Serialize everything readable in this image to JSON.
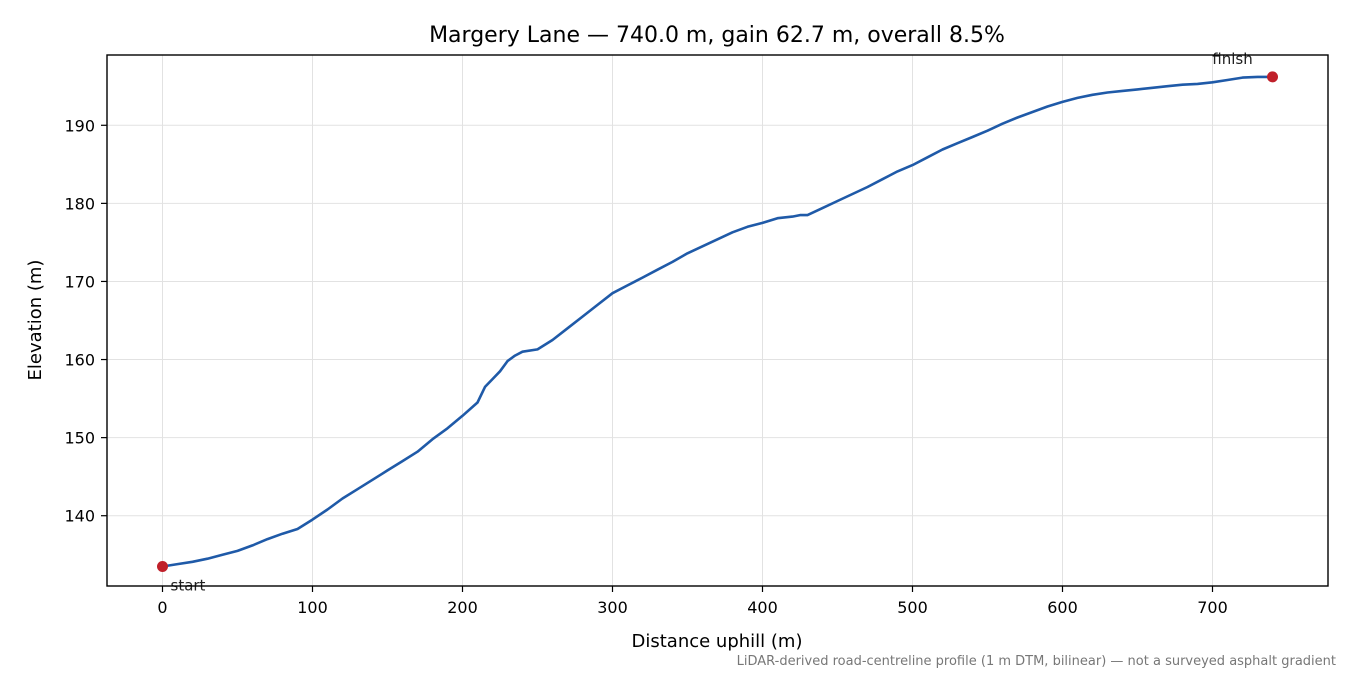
{
  "chart_data": {
    "type": "line",
    "title": "Margery Lane — 740.0 m, gain 62.7 m, overall 8.5%",
    "xlabel": "Distance uphill (m)",
    "ylabel": "Elevation (m)",
    "xlim": [
      -37,
      777
    ],
    "ylim": [
      131,
      199
    ],
    "xticks": [
      0,
      100,
      200,
      300,
      400,
      500,
      600,
      700
    ],
    "yticks": [
      140,
      150,
      160,
      170,
      180,
      190
    ],
    "grid": true,
    "colors": {
      "line": "#1f5aa8",
      "marker": "#c0202a",
      "grid": "#e2e2e2"
    },
    "series": [
      {
        "x": [
          0,
          10,
          20,
          30,
          40,
          50,
          60,
          70,
          80,
          90,
          100,
          110,
          120,
          130,
          140,
          150,
          160,
          170,
          180,
          190,
          200,
          210,
          215,
          220,
          225,
          230,
          235,
          240,
          250,
          260,
          270,
          280,
          290,
          300,
          310,
          320,
          330,
          340,
          350,
          360,
          370,
          380,
          390,
          400,
          410,
          420,
          425,
          430,
          440,
          450,
          460,
          470,
          480,
          490,
          500,
          510,
          520,
          530,
          540,
          550,
          560,
          570,
          580,
          590,
          600,
          610,
          620,
          630,
          640,
          650,
          660,
          670,
          680,
          690,
          700,
          710,
          720,
          730,
          740
        ],
        "y": [
          133.5,
          133.8,
          134.1,
          134.5,
          135.0,
          135.5,
          136.2,
          137.0,
          137.7,
          138.3,
          139.5,
          140.8,
          142.2,
          143.4,
          144.6,
          145.8,
          147.0,
          148.2,
          149.8,
          151.2,
          152.8,
          154.5,
          156.5,
          157.5,
          158.5,
          159.8,
          160.5,
          161.0,
          161.3,
          162.5,
          164.0,
          165.5,
          167.0,
          168.5,
          169.5,
          170.5,
          171.5,
          172.5,
          173.6,
          174.5,
          175.4,
          176.3,
          177.0,
          177.5,
          178.1,
          178.3,
          178.5,
          178.5,
          179.4,
          180.3,
          181.2,
          182.1,
          183.1,
          184.1,
          184.9,
          185.9,
          186.9,
          187.7,
          188.5,
          189.3,
          190.2,
          191.0,
          191.7,
          192.4,
          193.0,
          193.5,
          193.9,
          194.2,
          194.4,
          194.6,
          194.8,
          195.0,
          195.2,
          195.3,
          195.5,
          195.8,
          196.1,
          196.2,
          196.2
        ]
      }
    ],
    "annotations": [
      {
        "text": "start",
        "x": 0,
        "y": 133.5
      },
      {
        "text": "finish",
        "x": 740,
        "y": 196.2
      }
    ],
    "footnote": "LiDAR-derived road-centreline profile (1 m DTM, bilinear) — not a surveyed asphalt gradient"
  }
}
